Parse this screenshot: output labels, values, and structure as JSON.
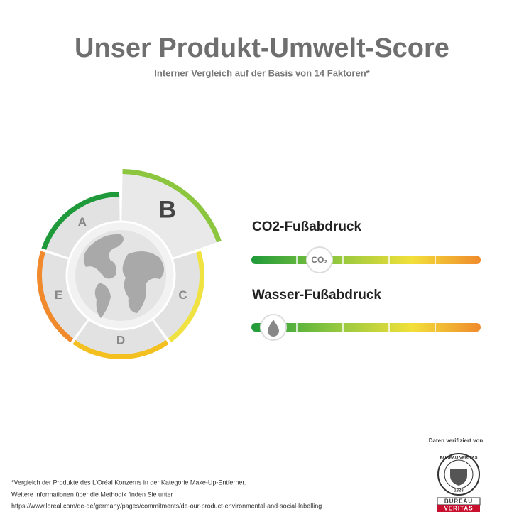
{
  "header": {
    "title": "Unser Produkt-Umwelt-Score",
    "subtitle": "Interner Vergleich auf der Basis von 14 Faktoren*"
  },
  "score": {
    "grades": [
      "A",
      "B",
      "C",
      "D",
      "E"
    ],
    "selected": "B"
  },
  "footprints": [
    {
      "label": "CO2-Fußabdruck",
      "icon": "CO₂"
    },
    {
      "label": "Wasser-Fußabdruck"
    }
  ],
  "verification": {
    "label": "Daten verifiziert von",
    "logo_ring": "BUREAU VERITAS",
    "logo_year": "1828",
    "logo_line1": "BUREAU",
    "logo_line2": "VERITAS"
  },
  "footnote": [
    "*Vergleich der Produkte des L'Oréal Konzerns in der Kategorie Make-Up-Entferner.",
    "Weitere informationen über die Methodik finden Sie unter",
    "https://www.loreal.com/de-de/germany/pages/commitments/de-our-product-environmental-and-social-labelling"
  ]
}
